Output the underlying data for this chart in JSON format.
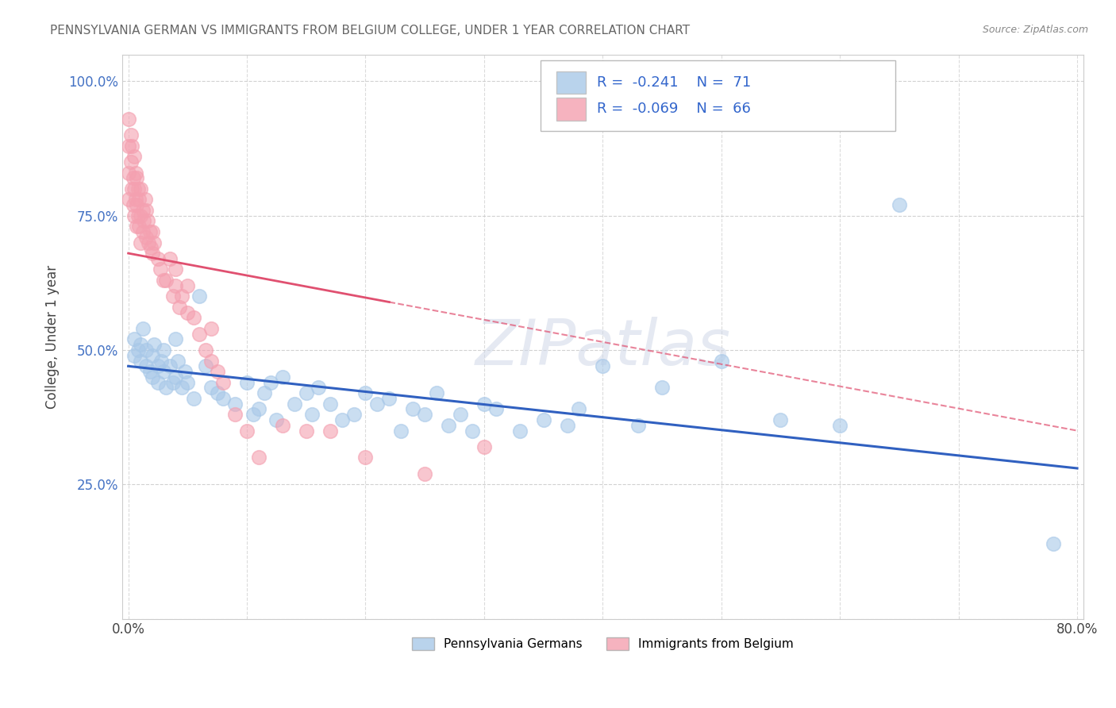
{
  "title": "PENNSYLVANIA GERMAN VS IMMIGRANTS FROM BELGIUM COLLEGE, UNDER 1 YEAR CORRELATION CHART",
  "source": "Source: ZipAtlas.com",
  "ylabel": "College, Under 1 year",
  "x_ticks": [
    0.0,
    0.1,
    0.2,
    0.3,
    0.4,
    0.5,
    0.6,
    0.7,
    0.8
  ],
  "x_tick_labels": [
    "0.0%",
    "",
    "",
    "",
    "",
    "",
    "",
    "",
    "80.0%"
  ],
  "y_ticks": [
    0.0,
    0.25,
    0.5,
    0.75,
    1.0
  ],
  "y_tick_labels": [
    "",
    "25.0%",
    "50.0%",
    "75.0%",
    "100.0%"
  ],
  "xlim": [
    -0.005,
    0.805
  ],
  "ylim": [
    0.0,
    1.05
  ],
  "blue_R": -0.241,
  "blue_N": 71,
  "pink_R": -0.069,
  "pink_N": 66,
  "blue_color": "#a8c8e8",
  "pink_color": "#f4a0b0",
  "blue_line_color": "#3060c0",
  "pink_line_color": "#e05070",
  "watermark": "ZIPatlas",
  "legend_blue_label": "Pennsylvania Germans",
  "legend_pink_label": "Immigrants from Belgium",
  "blue_trend_x0": 0.0,
  "blue_trend_y0": 0.47,
  "blue_trend_x1": 0.8,
  "blue_trend_y1": 0.28,
  "pink_trend_x0": 0.0,
  "pink_trend_y0": 0.68,
  "pink_trend_x1": 0.8,
  "pink_trend_y1": 0.35,
  "blue_scatter_x": [
    0.005,
    0.005,
    0.008,
    0.01,
    0.01,
    0.012,
    0.015,
    0.015,
    0.018,
    0.02,
    0.02,
    0.022,
    0.025,
    0.025,
    0.028,
    0.03,
    0.03,
    0.032,
    0.035,
    0.038,
    0.04,
    0.04,
    0.042,
    0.045,
    0.048,
    0.05,
    0.055,
    0.06,
    0.065,
    0.07,
    0.075,
    0.08,
    0.09,
    0.1,
    0.105,
    0.11,
    0.115,
    0.12,
    0.125,
    0.13,
    0.14,
    0.15,
    0.155,
    0.16,
    0.17,
    0.18,
    0.19,
    0.2,
    0.21,
    0.22,
    0.23,
    0.24,
    0.25,
    0.26,
    0.27,
    0.28,
    0.29,
    0.3,
    0.31,
    0.33,
    0.35,
    0.37,
    0.38,
    0.4,
    0.43,
    0.45,
    0.5,
    0.55,
    0.6,
    0.65,
    0.78
  ],
  "blue_scatter_y": [
    0.52,
    0.49,
    0.5,
    0.48,
    0.51,
    0.54,
    0.5,
    0.47,
    0.46,
    0.49,
    0.45,
    0.51,
    0.47,
    0.44,
    0.48,
    0.5,
    0.46,
    0.43,
    0.47,
    0.44,
    0.52,
    0.45,
    0.48,
    0.43,
    0.46,
    0.44,
    0.41,
    0.6,
    0.47,
    0.43,
    0.42,
    0.41,
    0.4,
    0.44,
    0.38,
    0.39,
    0.42,
    0.44,
    0.37,
    0.45,
    0.4,
    0.42,
    0.38,
    0.43,
    0.4,
    0.37,
    0.38,
    0.42,
    0.4,
    0.41,
    0.35,
    0.39,
    0.38,
    0.42,
    0.36,
    0.38,
    0.35,
    0.4,
    0.39,
    0.35,
    0.37,
    0.36,
    0.39,
    0.47,
    0.36,
    0.43,
    0.48,
    0.37,
    0.36,
    0.77,
    0.14
  ],
  "pink_scatter_x": [
    0.0,
    0.0,
    0.0,
    0.0,
    0.002,
    0.002,
    0.003,
    0.003,
    0.004,
    0.004,
    0.005,
    0.005,
    0.005,
    0.006,
    0.006,
    0.007,
    0.007,
    0.007,
    0.008,
    0.008,
    0.009,
    0.009,
    0.01,
    0.01,
    0.01,
    0.012,
    0.012,
    0.013,
    0.014,
    0.015,
    0.015,
    0.016,
    0.017,
    0.018,
    0.019,
    0.02,
    0.02,
    0.022,
    0.025,
    0.027,
    0.03,
    0.032,
    0.035,
    0.038,
    0.04,
    0.04,
    0.043,
    0.045,
    0.05,
    0.05,
    0.055,
    0.06,
    0.065,
    0.07,
    0.07,
    0.075,
    0.08,
    0.09,
    0.1,
    0.11,
    0.13,
    0.15,
    0.17,
    0.2,
    0.25,
    0.3
  ],
  "pink_scatter_y": [
    0.93,
    0.88,
    0.83,
    0.78,
    0.9,
    0.85,
    0.88,
    0.8,
    0.82,
    0.77,
    0.86,
    0.8,
    0.75,
    0.83,
    0.78,
    0.82,
    0.77,
    0.73,
    0.8,
    0.75,
    0.78,
    0.73,
    0.8,
    0.75,
    0.7,
    0.76,
    0.72,
    0.74,
    0.78,
    0.76,
    0.71,
    0.74,
    0.7,
    0.72,
    0.69,
    0.72,
    0.68,
    0.7,
    0.67,
    0.65,
    0.63,
    0.63,
    0.67,
    0.6,
    0.65,
    0.62,
    0.58,
    0.6,
    0.57,
    0.62,
    0.56,
    0.53,
    0.5,
    0.48,
    0.54,
    0.46,
    0.44,
    0.38,
    0.35,
    0.3,
    0.36,
    0.35,
    0.35,
    0.3,
    0.27,
    0.32
  ]
}
